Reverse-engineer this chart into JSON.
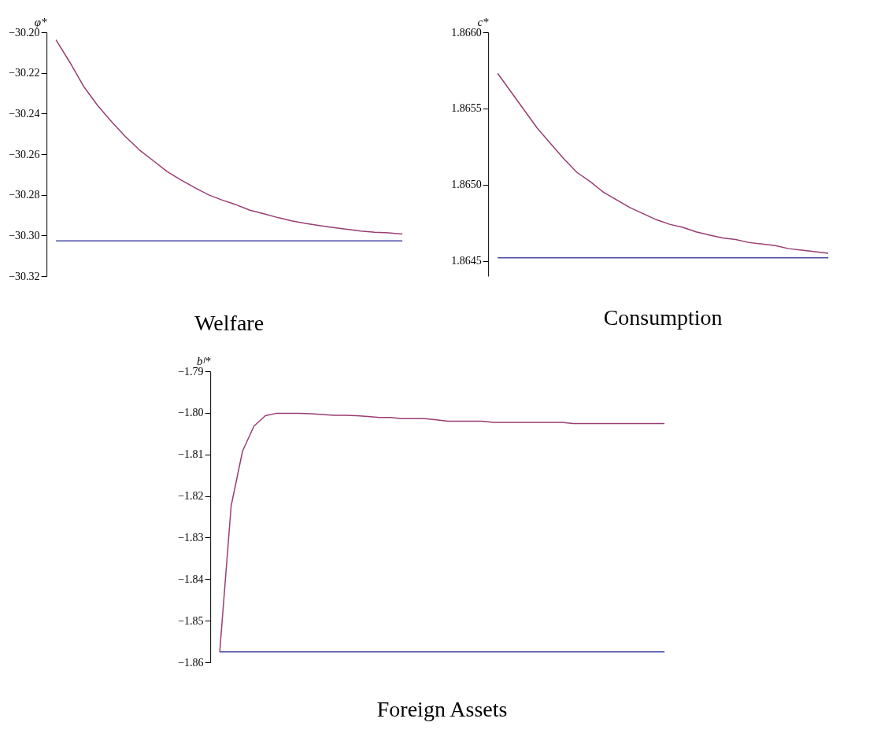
{
  "chart_data": [
    {
      "type": "line",
      "title": "Welfare",
      "ylabel": "φ*",
      "tick_labels": "y",
      "categories": [
        null,
        null,
        null,
        null,
        null,
        null,
        null,
        null,
        null,
        null,
        null,
        null,
        null,
        null,
        null,
        null,
        null,
        null,
        null,
        null,
        null,
        null,
        null,
        null,
        null,
        null
      ],
      "ylim": [
        -30.32,
        -30.2
      ],
      "yticks": [
        {
          "value": -30.32,
          "label": "−30.32"
        },
        {
          "value": -30.3,
          "label": "−30.30"
        },
        {
          "value": -30.28,
          "label": "−30.28"
        },
        {
          "value": -30.26,
          "label": "−30.26"
        },
        {
          "value": -30.24,
          "label": "−30.24"
        },
        {
          "value": -30.22,
          "label": "−30.22"
        },
        {
          "value": -30.2,
          "label": "−30.20"
        }
      ],
      "series": [
        {
          "color": "#993d71",
          "values": [
            -30.2037,
            -30.2148,
            -30.2267,
            -30.236,
            -30.2439,
            -30.2513,
            -30.2578,
            -30.2631,
            -30.2685,
            -30.2726,
            -30.2764,
            -30.28,
            -30.2826,
            -30.2849,
            -30.2876,
            -30.2893,
            -30.2912,
            -30.2928,
            -30.2941,
            -30.2951,
            -30.2961,
            -30.297,
            -30.2978,
            -30.2984,
            -30.2987,
            -30.2993
          ]
        },
        {
          "color": "#4a4aa8",
          "values": [
            -30.3027,
            -30.3027,
            -30.3027,
            -30.3027,
            -30.3027,
            -30.3027,
            -30.3027,
            -30.3027,
            -30.3027,
            -30.3027,
            -30.3027,
            -30.3027,
            -30.3027,
            -30.3027,
            -30.3027,
            -30.3027,
            -30.3027,
            -30.3027,
            -30.3027,
            -30.3027,
            -30.3027,
            -30.3027,
            -30.3027,
            -30.3027,
            -30.3027,
            -30.3027
          ]
        }
      ]
    },
    {
      "type": "line",
      "title": "Consumption",
      "ylabel": "c*",
      "tick_labels": "y",
      "categories": [
        null,
        null,
        null,
        null,
        null,
        null,
        null,
        null,
        null,
        null,
        null,
        null,
        null,
        null,
        null,
        null,
        null,
        null,
        null,
        null,
        null,
        null,
        null,
        null,
        null,
        null
      ],
      "ylim": [
        1.8644,
        1.866
      ],
      "yticks": [
        {
          "value": 1.8645,
          "label": "1.8645"
        },
        {
          "value": 1.865,
          "label": "1.8650"
        },
        {
          "value": 1.8655,
          "label": "1.8655"
        },
        {
          "value": 1.866,
          "label": "1.8660"
        }
      ],
      "series": [
        {
          "color": "#993d71",
          "values": [
            1.86573,
            1.86561,
            1.86549,
            1.86537,
            1.86527,
            1.86517,
            1.86508,
            1.86502,
            1.86495,
            1.8649,
            1.86485,
            1.86481,
            1.86477,
            1.86474,
            1.86472,
            1.86469,
            1.86467,
            1.86465,
            1.86464,
            1.86462,
            1.86461,
            1.8646,
            1.86458,
            1.86457,
            1.86456,
            1.86455
          ]
        },
        {
          "color": "#4a4aa8",
          "values": [
            1.86452,
            1.86452,
            1.86452,
            1.86452,
            1.86452,
            1.86452,
            1.86452,
            1.86452,
            1.86452,
            1.86452,
            1.86452,
            1.86452,
            1.86452,
            1.86452,
            1.86452,
            1.86452,
            1.86452,
            1.86452,
            1.86452,
            1.86452,
            1.86452,
            1.86452,
            1.86452,
            1.86452,
            1.86452,
            1.86452
          ]
        }
      ]
    },
    {
      "type": "line",
      "title": "Foreign Assets",
      "ylabel": "bᶠ*",
      "tick_labels": "y",
      "categories": [
        null,
        null,
        null,
        null,
        null,
        null,
        null,
        null,
        null,
        null,
        null,
        null,
        null,
        null,
        null,
        null,
        null,
        null,
        null,
        null,
        null,
        null,
        null,
        null,
        null,
        null,
        null,
        null,
        null,
        null,
        null,
        null,
        null,
        null,
        null,
        null,
        null,
        null,
        null,
        null
      ],
      "ylim": [
        -1.86,
        -1.79
      ],
      "yticks": [
        {
          "value": -1.86,
          "label": "−1.86"
        },
        {
          "value": -1.85,
          "label": "−1.85"
        },
        {
          "value": -1.84,
          "label": "−1.84"
        },
        {
          "value": -1.83,
          "label": "−1.83"
        },
        {
          "value": -1.82,
          "label": "−1.82"
        },
        {
          "value": -1.81,
          "label": "−1.81"
        },
        {
          "value": -1.8,
          "label": "−1.80"
        },
        {
          "value": -1.79,
          "label": "−1.79"
        }
      ],
      "series": [
        {
          "color": "#993d71",
          "values": [
            -1.8575,
            -1.8224,
            -1.8092,
            -1.8032,
            -1.8007,
            -1.8001,
            -1.8001,
            -1.8001,
            -1.8002,
            -1.8004,
            -1.8006,
            -1.8006,
            -1.8007,
            -1.8009,
            -1.8011,
            -1.8011,
            -1.8014,
            -1.8014,
            -1.8014,
            -1.8017,
            -1.802,
            -1.802,
            -1.802,
            -1.802,
            -1.8023,
            -1.8023,
            -1.8023,
            -1.8023,
            -1.8023,
            -1.8023,
            -1.8023,
            -1.8026,
            -1.8026,
            -1.8026,
            -1.8026,
            -1.8026,
            -1.8026,
            -1.8026,
            -1.8026,
            -1.8026
          ]
        },
        {
          "color": "#4a4aa8",
          "values": [
            -1.8575,
            -1.8575,
            -1.8575,
            -1.8575,
            -1.8575,
            -1.8575,
            -1.8575,
            -1.8575,
            -1.8575,
            -1.8575,
            -1.8575,
            -1.8575,
            -1.8575,
            -1.8575,
            -1.8575,
            -1.8575,
            -1.8575,
            -1.8575,
            -1.8575,
            -1.8575,
            -1.8575,
            -1.8575,
            -1.8575,
            -1.8575,
            -1.8575,
            -1.8575,
            -1.8575,
            -1.8575,
            -1.8575,
            -1.8575,
            -1.8575,
            -1.8575,
            -1.8575,
            -1.8575,
            -1.8575,
            -1.8575,
            -1.8575,
            -1.8575,
            -1.8575,
            -1.8575
          ]
        }
      ]
    }
  ]
}
